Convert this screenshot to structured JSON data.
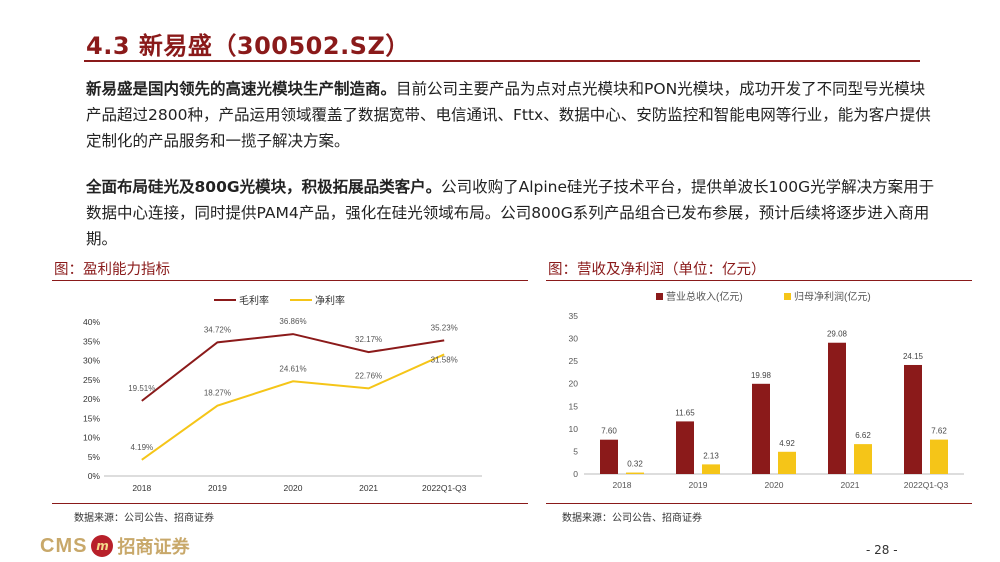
{
  "header": {
    "title": "4.3 新易盛（300502.SZ）"
  },
  "paragraph1": {
    "lead": "新易盛是国内领先的高速光模块生产制造商。",
    "body": "目前公司主要产品为点对点光模块和PON光模块，成功开发了不同型号光模块产品超过2800种，产品运用领域覆盖了数据宽带、电信通讯、Fttx、数据中心、安防监控和智能电网等行业，能为客户提供定制化的产品服务和一揽子解决方案。"
  },
  "paragraph2": {
    "lead": "全面布局硅光及800G光模块，积极拓展品类客户。",
    "body": "公司收购了Alpine硅光子技术平台，提供单波长100G光学解决方案用于数据中心连接，同时提供PAM4产品，强化在硅光领域布局。公司800G系列产品组合已发布参展，预计后续将逐步进入商用期。"
  },
  "figure_left": {
    "title": "图：盈利能力指标",
    "source": "数据来源：公司公告、招商证券"
  },
  "figure_right": {
    "title": "图：营收及净利润（单位：亿元）",
    "source": "数据来源：公司公告、招商证券"
  },
  "footer": {
    "logo_text": "CMS",
    "logo_badge": "m",
    "logo_cn": "招商证券",
    "page": "- 28 -"
  },
  "colors": {
    "accent": "#8a1a1a",
    "series_red": "#8b1a1a",
    "series_yellow": "#f5c518"
  },
  "chart_data": [
    {
      "type": "line",
      "categories": [
        "2018",
        "2019",
        "2020",
        "2021",
        "2022Q1-Q3"
      ],
      "series": [
        {
          "name": "毛利率",
          "values": [
            19.51,
            34.72,
            36.86,
            32.17,
            35.23
          ],
          "labels": [
            "19.51%",
            "34.72%",
            "36.86%",
            "32.17%",
            "35.23%"
          ],
          "color": "#8b1a1a"
        },
        {
          "name": "净利率",
          "values": [
            4.19,
            18.27,
            24.61,
            22.76,
            31.58
          ],
          "labels": [
            "4.19%",
            "18.27%",
            "24.61%",
            "22.76%",
            "31.58%"
          ],
          "color": "#f5c518"
        }
      ],
      "yticks": [
        "0%",
        "5%",
        "10%",
        "15%",
        "20%",
        "25%",
        "30%",
        "35%",
        "40%"
      ],
      "ylim": [
        0,
        40
      ],
      "legend": "top"
    },
    {
      "type": "bar",
      "categories": [
        "2018",
        "2019",
        "2020",
        "2021",
        "2022Q1-Q3"
      ],
      "series": [
        {
          "name": "营业总收入(亿元)",
          "values": [
            7.6,
            11.65,
            19.98,
            29.08,
            24.15
          ],
          "labels": [
            "7.60",
            "11.65",
            "19.98",
            "29.08",
            "24.15"
          ],
          "color": "#8b1a1a"
        },
        {
          "name": "归母净利润(亿元)",
          "values": [
            0.32,
            2.13,
            4.92,
            6.62,
            7.62
          ],
          "labels": [
            "0.32",
            "2.13",
            "4.92",
            "6.62",
            "7.62"
          ],
          "color": "#f5c518"
        }
      ],
      "yticks": [
        "0",
        "5",
        "10",
        "15",
        "20",
        "25",
        "30",
        "35"
      ],
      "ylim": [
        0,
        35
      ],
      "legend": "top"
    }
  ]
}
